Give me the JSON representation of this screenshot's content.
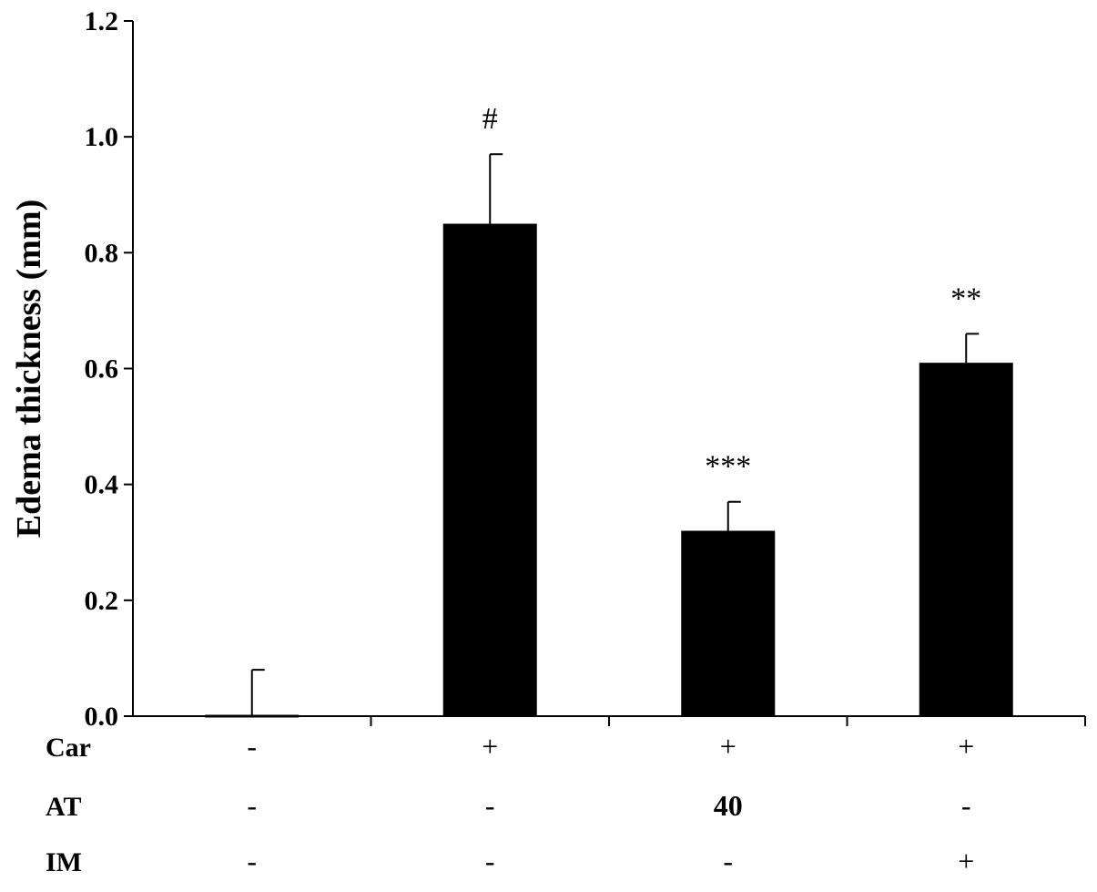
{
  "chart_data": {
    "type": "bar",
    "ylabel": "Edema thickness (mm)",
    "xlabel": "",
    "ylim": [
      0,
      1.2
    ],
    "yticks": [
      0.0,
      0.2,
      0.4,
      0.6,
      0.8,
      1.0,
      1.2
    ],
    "ytick_labels": [
      "0.0",
      "0.2",
      "0.4",
      "0.6",
      "0.8",
      "1.0",
      "1.2"
    ],
    "grid": false,
    "legend": "none",
    "bar_color": "#000000",
    "groups": 4,
    "values": [
      0.0,
      0.85,
      0.32,
      0.61
    ],
    "errors": [
      0.08,
      0.12,
      0.05,
      0.05
    ],
    "annotations": [
      "",
      "#",
      "***",
      "**"
    ],
    "condition_rows": [
      {
        "label": "Car",
        "values": [
          "-",
          "+",
          "+",
          "+"
        ]
      },
      {
        "label": "AT",
        "values": [
          "-",
          "-",
          "40",
          "-"
        ]
      },
      {
        "label": "IM",
        "values": [
          "-",
          "-",
          "-",
          "+"
        ]
      }
    ]
  }
}
